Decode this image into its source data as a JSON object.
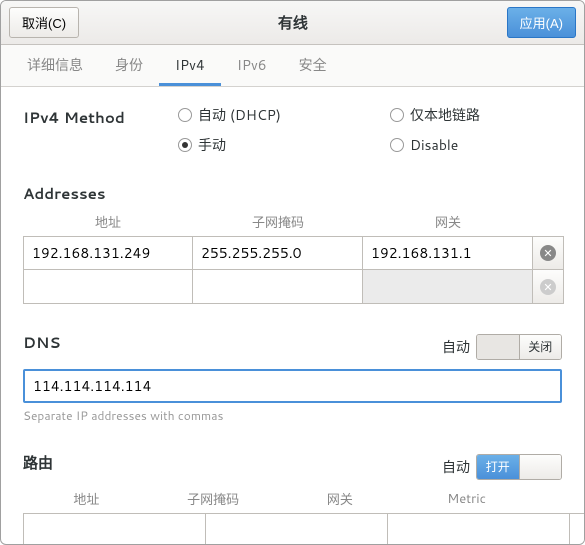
{
  "header": {
    "cancel_label": "取消(C)",
    "title": "有线",
    "apply_label": "应用(A)"
  },
  "tabs": [
    {
      "label": "详细信息",
      "active": false
    },
    {
      "label": "身份",
      "active": false
    },
    {
      "label": "IPv4",
      "active": true
    },
    {
      "label": "IPv6",
      "active": false
    },
    {
      "label": "安全",
      "active": false
    }
  ],
  "method": {
    "label": "IPv4 Method",
    "options": {
      "auto": "自动 (DHCP)",
      "linklocal": "仅本地链路",
      "manual": "手动",
      "disable": "Disable"
    },
    "selected": "manual"
  },
  "addresses": {
    "title": "Addresses",
    "headers": {
      "address": "地址",
      "netmask": "子网掩码",
      "gateway": "网关"
    },
    "rows": [
      {
        "address": "192.168.131.249",
        "netmask": "255.255.255.0",
        "gateway": "192.168.131.1"
      }
    ]
  },
  "dns": {
    "title": "DNS",
    "auto_label": "自动",
    "switch_state": "off",
    "switch_off_text": "关闭",
    "switch_on_text": "打开",
    "value": "114.114.114.114",
    "hint": "Separate IP addresses with commas"
  },
  "routes": {
    "title": "路由",
    "auto_label": "自动",
    "switch_state": "on",
    "switch_on_text": "打开",
    "switch_off_text": "关闭",
    "headers": {
      "address": "地址",
      "netmask": "子网掩码",
      "gateway": "网关",
      "metric": "Metric"
    }
  },
  "colors": {
    "accent": "#4a90d9",
    "border": "#c0bdb8",
    "background": "#ffffff"
  }
}
